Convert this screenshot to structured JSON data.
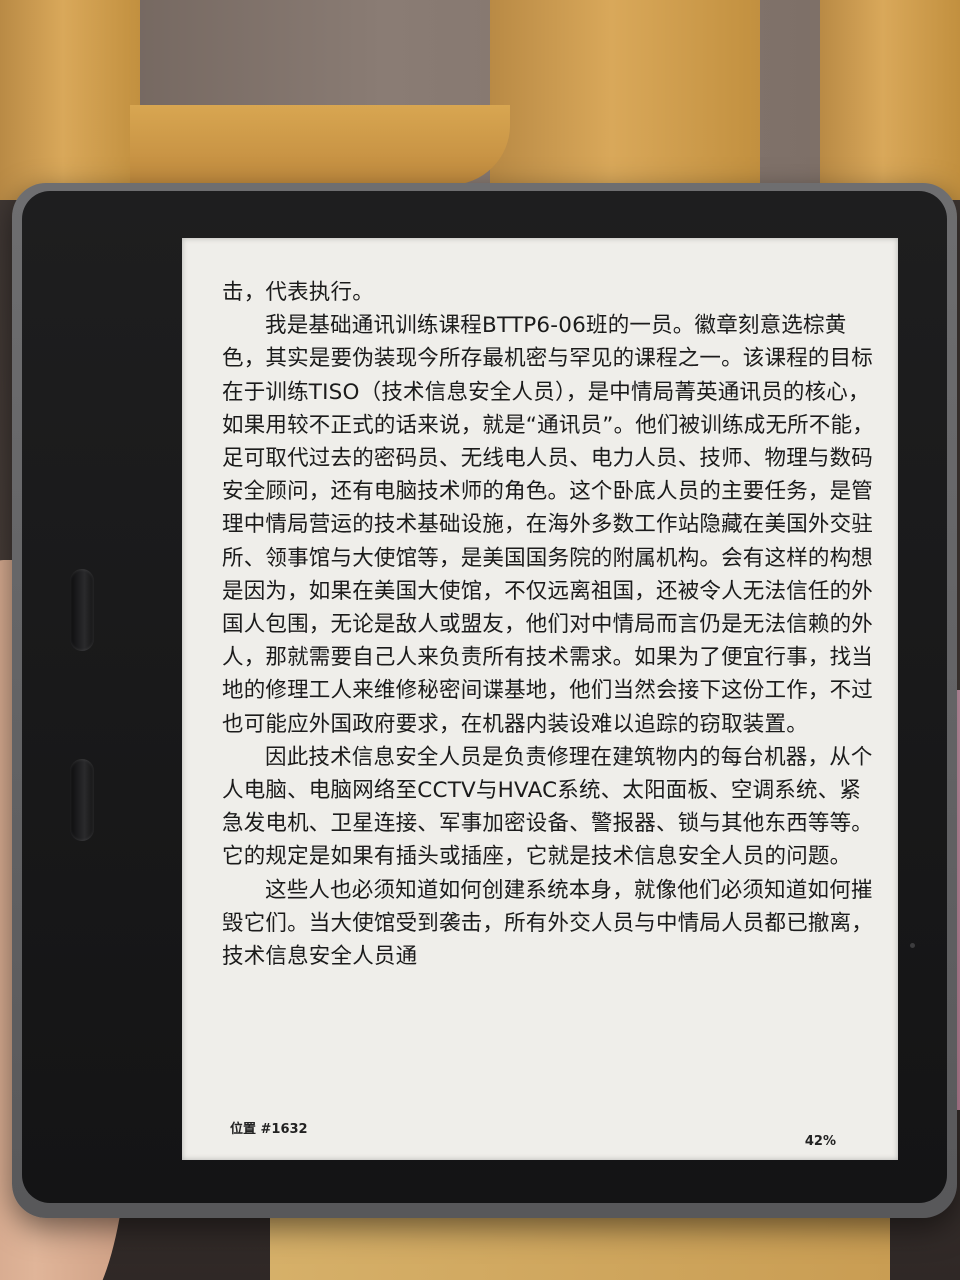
{
  "reader": {
    "paragraphs": [
      {
        "text": "击，代表执行。",
        "indent": false
      },
      {
        "text": "我是基础通讯训练课程BTTP6-06班的一员。徽章刻意选棕黄色，其实是要伪装现今所存最机密与罕见的课程之一。该课程的目标在于训练TISO（技术信息安全人员），是中情局菁英通讯员的核心，如果用较不正式的话来说，就是“通讯员”。他们被训练成无所不能，足可取代过去的密码员、无线电人员、电力人员、技师、物理与数码安全顾问，还有电脑技术师的角色。这个卧底人员的主要任务，是管理中情局营运的技术基础设施，在海外多数工作站隐藏在美国外交驻所、领事馆与大使馆等，是美国国务院的附属机构。会有这样的构想是因为，如果在美国大使馆，不仅远离祖国，还被令人无法信任的外国人包围，无论是敌人或盟友，他们对中情局而言仍是无法信赖的外人，那就需要自己人来负责所有技术需求。如果为了便宜行事，找当地的修理工人来维修秘密间谍基地，他们当然会接下这份工作，不过也可能应外国政府要求，在机器内装设难以追踪的窃取装置。",
        "indent": true
      },
      {
        "text": "因此技术信息安全人员是负责修理在建筑物内的每台机器，从个人电脑、电脑网络至CCTV与HVAC系统、太阳面板、空调系统、紧急发电机、卫星连接、军事加密设备、警报器、锁与其他东西等等。它的规定是如果有插头或插座，它就是技术信息安全人员的问题。",
        "indent": true
      },
      {
        "text": "这些人也必须知道如何创建系统本身，就像他们必须知道如何摧毁它们。当大使馆受到袭击，所有外交人员与中情局人员都已撤离，技术信息安全人员通",
        "indent": true
      }
    ],
    "location_label": "位置 #1632",
    "progress_percent": "42%"
  }
}
